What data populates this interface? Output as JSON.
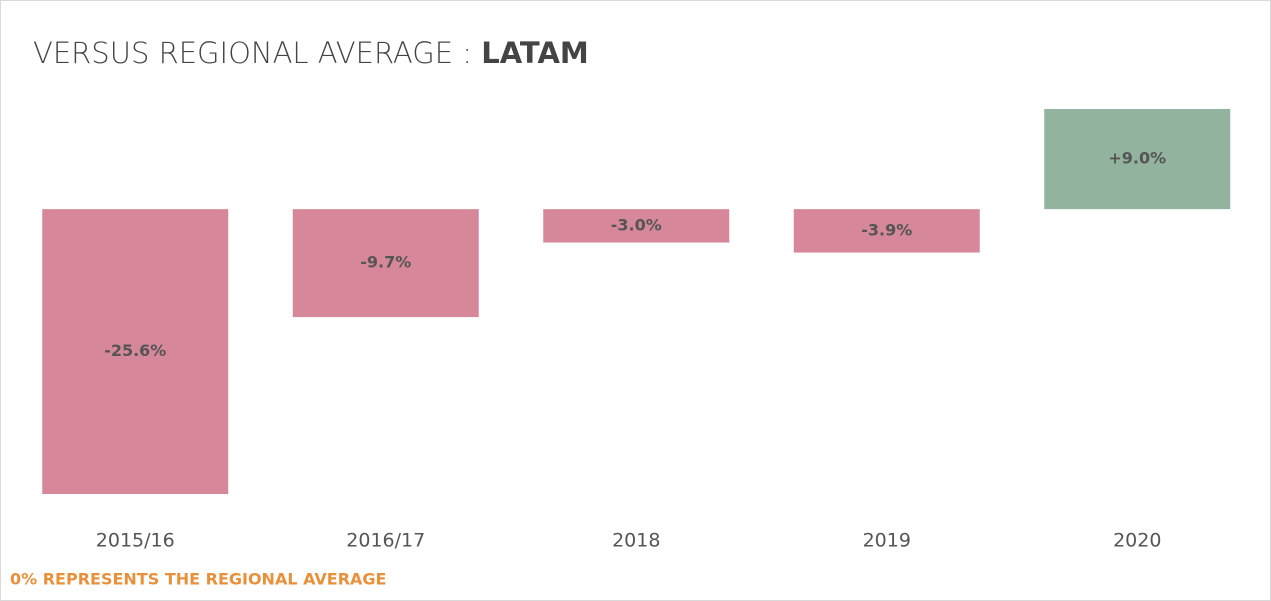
{
  "chart_data": {
    "type": "bar",
    "title": "VERSUS REGIONAL AVERAGE :",
    "title_region": "LATAM",
    "categories": [
      "2015/16",
      "2016/17",
      "2018",
      "2019",
      "2020"
    ],
    "values": [
      -25.6,
      -9.7,
      -3.0,
      -3.9,
      9.0
    ],
    "value_labels": [
      "-25.6%",
      "-9.7%",
      "-3.0%",
      "-3.9%",
      "+9.0%"
    ],
    "colors": {
      "negative": "#d6889a",
      "positive": "#92b49e"
    },
    "footnote": "0% REPRESENTS THE REGIONAL AVERAGE",
    "footnote_color": "#e8913a"
  }
}
